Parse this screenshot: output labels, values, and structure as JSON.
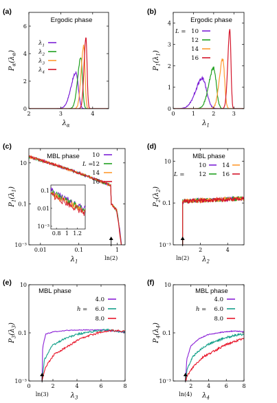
{
  "chart_data": [
    {
      "panel": "(a)",
      "type": "line",
      "title": "Ergodic phase",
      "xlabel": "λα",
      "ylabel": "Pα(λα)",
      "xlim": [
        2,
        4.5
      ],
      "ylim": [
        0,
        7
      ],
      "yscale": "linear",
      "xticks": [
        2,
        3,
        4
      ],
      "yticks": [
        0,
        2,
        4,
        6
      ],
      "legend": {
        "position": "left",
        "header": "",
        "labels": [
          "λ1",
          "λ2",
          "λ3",
          "λ4"
        ]
      },
      "series": [
        {
          "name": "λ1",
          "color": "#7b1fd6",
          "peaks": [
            {
              "x": 3.48,
              "y": 2.6,
              "wl": 0.16,
              "wr": 0.07
            }
          ]
        },
        {
          "name": "λ2",
          "color": "#1fa01f",
          "peaks": [
            {
              "x": 3.63,
              "y": 3.7,
              "wl": 0.1,
              "wr": 0.05
            }
          ]
        },
        {
          "name": "λ3",
          "color": "#ff9a2e",
          "peaks": [
            {
              "x": 3.72,
              "y": 4.6,
              "wl": 0.08,
              "wr": 0.04
            }
          ]
        },
        {
          "name": "λ4",
          "color": "#d4142a",
          "peaks": [
            {
              "x": 3.79,
              "y": 5.2,
              "wl": 0.06,
              "wr": 0.035
            }
          ]
        }
      ]
    },
    {
      "panel": "(b)",
      "type": "line",
      "title": "Ergodic phase",
      "xlabel": "λ1",
      "ylabel": "P1(λ1)",
      "xlim": [
        0,
        3.5
      ],
      "ylim": [
        0,
        4.5
      ],
      "yscale": "linear",
      "xticks": [
        0,
        1,
        2,
        3
      ],
      "yticks": [
        0,
        1,
        2,
        3,
        4
      ],
      "legend": {
        "position": "top-left",
        "header": "L =",
        "labels": [
          "10",
          "12",
          "14",
          "16"
        ]
      },
      "series": [
        {
          "name": "10",
          "color": "#7b1fd6",
          "peaks": [
            {
              "x": 1.45,
              "y": 1.4,
              "wl": 0.34,
              "wr": 0.2
            }
          ]
        },
        {
          "name": "12",
          "color": "#1fa01f",
          "peaks": [
            {
              "x": 2.0,
              "y": 1.9,
              "wl": 0.24,
              "wr": 0.13
            }
          ]
        },
        {
          "name": "14",
          "color": "#ff9a2e",
          "peaks": [
            {
              "x": 2.45,
              "y": 2.3,
              "wl": 0.17,
              "wr": 0.09
            }
          ]
        },
        {
          "name": "16",
          "color": "#d4142a",
          "peaks": [
            {
              "x": 2.8,
              "y": 3.7,
              "wl": 0.1,
              "wr": 0.055
            }
          ]
        }
      ]
    },
    {
      "panel": "(c)",
      "type": "line",
      "title": "MBL phase",
      "xlabel": "λ1",
      "ylabel": "P1(λ1)",
      "xlim": [
        0.005,
        1.6
      ],
      "ylim": [
        0.001,
        50
      ],
      "xscale": "log",
      "yscale": "log",
      "xticks": [
        0.01,
        0.1,
        1
      ],
      "xticklabels": [
        "0.01",
        "0.1",
        "1"
      ],
      "yticks": [
        0.001,
        0.1,
        10
      ],
      "yticklabels": [
        "10⁻³",
        "0.1",
        "10"
      ],
      "legend": {
        "position": "top-right",
        "header": "L =",
        "labels": [
          "10",
          "12",
          "14",
          "16"
        ]
      },
      "annotation": "ln(2)",
      "inset": {
        "xlim": [
          0.693,
          1.35
        ],
        "ylim": [
          0.0007,
          0.2
        ],
        "xticks": [
          0.8,
          1,
          1.2
        ],
        "yticks": [
          "0.1",
          "0.01",
          "10⁻³"
        ]
      },
      "series": [
        {
          "name": "10",
          "color": "#7b1fd6"
        },
        {
          "name": "12",
          "color": "#1fa01f"
        },
        {
          "name": "14",
          "color": "#ff9a2e"
        },
        {
          "name": "16",
          "color": "#d4142a"
        }
      ]
    },
    {
      "panel": "(d)",
      "type": "line",
      "title": "MBL phase",
      "xlabel": "λ2",
      "ylabel": "P2(λ2)",
      "xlim": [
        0,
        5.2
      ],
      "ylim": [
        0.001,
        40
      ],
      "yscale": "log",
      "xticks": [
        2,
        4
      ],
      "yticks": [
        0.001,
        0.1,
        10
      ],
      "yticklabels": [
        "10⁻³",
        "0.1",
        "10"
      ],
      "legend": {
        "position": "top-right",
        "header": "L =",
        "labels": [
          "10",
          "12",
          "14",
          "16"
        ]
      },
      "annotation": "ln(2)",
      "series": [
        {
          "name": "10",
          "color": "#7b1fd6"
        },
        {
          "name": "12",
          "color": "#1fa01f"
        },
        {
          "name": "14",
          "color": "#ff9a2e"
        },
        {
          "name": "16",
          "color": "#d4142a"
        }
      ]
    },
    {
      "panel": "(e)",
      "type": "line",
      "title": "MBL phase",
      "xlabel": "λ3",
      "ylabel": "P3(λ3)",
      "xlim": [
        0,
        8
      ],
      "ylim": [
        0.001,
        10
      ],
      "yscale": "log",
      "xticks": [
        0,
        2,
        4,
        6,
        8
      ],
      "yticks": [
        0.001,
        0.1,
        10
      ],
      "yticklabels": [
        "10⁻³",
        "0.1",
        "10"
      ],
      "legend": {
        "position": "top-right",
        "header": "h =",
        "labels": [
          "4.0",
          "6.0",
          "8.0"
        ]
      },
      "annotation": "ln(3)",
      "series": [
        {
          "name": "4.0",
          "color": "#8a1fd6"
        },
        {
          "name": "6.0",
          "color": "#14a08a"
        },
        {
          "name": "8.0",
          "color": "#e8162a"
        }
      ]
    },
    {
      "panel": "(f)",
      "type": "line",
      "title": "MBL phase",
      "xlabel": "λ4",
      "ylabel": "P4(λ4)",
      "xlim": [
        0,
        8
      ],
      "ylim": [
        0.001,
        10
      ],
      "yscale": "log",
      "xticks": [
        2,
        4,
        6,
        8
      ],
      "yticks": [
        0.001,
        0.1,
        10
      ],
      "yticklabels": [
        "10⁻³",
        "0.1",
        "10"
      ],
      "legend": {
        "position": "top-right",
        "header": "h =",
        "labels": [
          "4.0",
          "6.0",
          "8.0"
        ]
      },
      "annotation": "ln(4)",
      "series": [
        {
          "name": "4.0",
          "color": "#8a1fd6"
        },
        {
          "name": "6.0",
          "color": "#14a08a"
        },
        {
          "name": "8.0",
          "color": "#e8162a"
        }
      ]
    }
  ]
}
